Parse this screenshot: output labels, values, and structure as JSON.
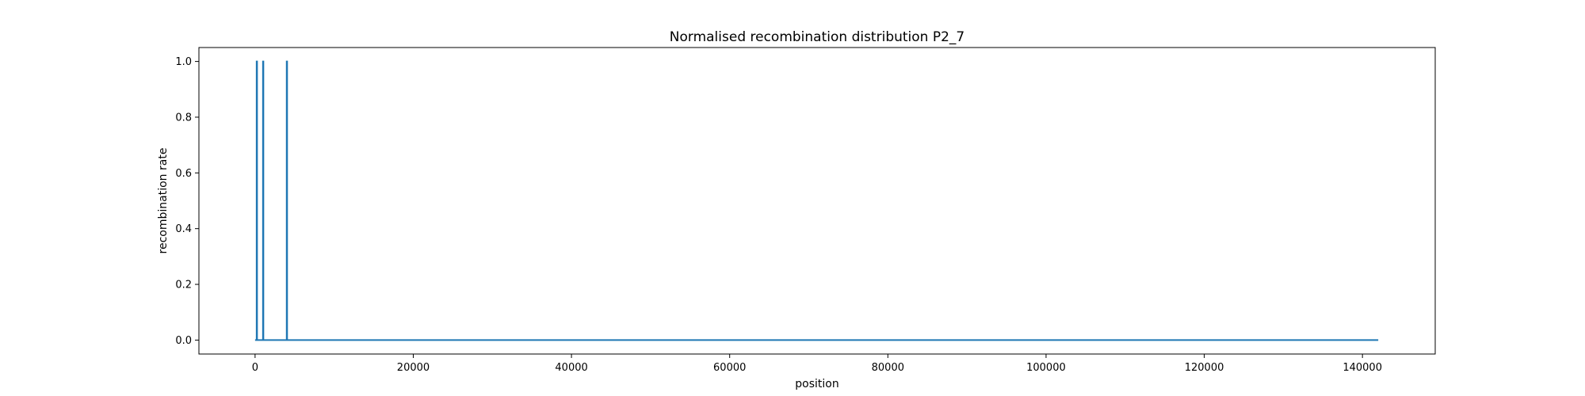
{
  "chart_data": {
    "type": "line",
    "title": "Normalised recombination distribution P2_7",
    "xlabel": "position",
    "ylabel": "recombination rate",
    "xlim": [
      -7100,
      149200
    ],
    "ylim": [
      -0.05,
      1.05
    ],
    "xticks": [
      0,
      20000,
      40000,
      60000,
      80000,
      100000,
      120000,
      140000
    ],
    "xtick_labels": [
      "0",
      "20000",
      "40000",
      "60000",
      "80000",
      "100000",
      "120000",
      "140000"
    ],
    "yticks": [
      0.0,
      0.2,
      0.4,
      0.6,
      0.8,
      1.0
    ],
    "ytick_labels": [
      "0.0",
      "0.2",
      "0.4",
      "0.6",
      "0.8",
      "1.0"
    ],
    "grid": false,
    "series": [
      {
        "color": "#1f77b4",
        "x": [
          0,
          200,
          200,
          250,
          250,
          1000,
          1000,
          1050,
          1050,
          4000,
          4000,
          4050,
          4050,
          142000
        ],
        "y": [
          0,
          0,
          1,
          1,
          0,
          0,
          1,
          1,
          0,
          0,
          1,
          1,
          0,
          0
        ]
      }
    ]
  }
}
